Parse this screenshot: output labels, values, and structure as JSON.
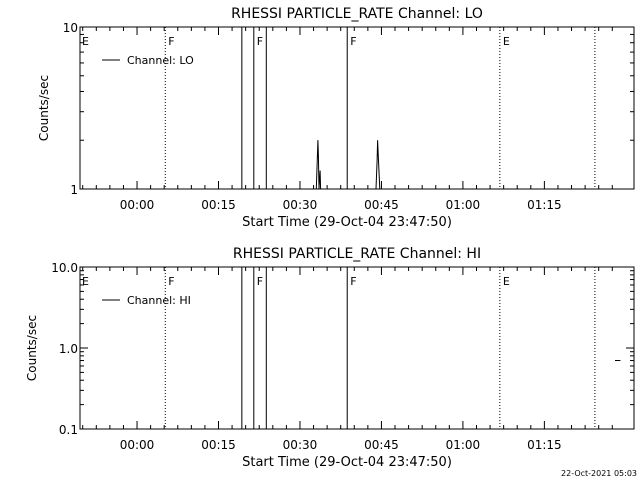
{
  "footer": {
    "timestamp": "22-Oct-2021 05:03"
  },
  "chart_data": [
    {
      "type": "line",
      "title": "RHESSI PARTICLE_RATE Channel: LO",
      "xlabel": "Start Time (29-Oct-04 23:47:50)",
      "ylabel": "Counts/sec",
      "yscale": "log",
      "ylim": [
        1,
        10
      ],
      "yticks": [
        {
          "value": 1,
          "label": "1"
        },
        {
          "value": 10,
          "label": "10"
        }
      ],
      "xlim_minutes": [
        -10.5,
        91.5
      ],
      "xticks": [
        {
          "t": 0,
          "label": "00:00"
        },
        {
          "t": 15,
          "label": "00:15"
        },
        {
          "t": 30,
          "label": "00:30"
        },
        {
          "t": 45,
          "label": "00:45"
        },
        {
          "t": 60,
          "label": "01:00"
        },
        {
          "t": 75,
          "label": "01:15"
        }
      ],
      "legend": {
        "label": "Channel: LO",
        "placement": "top-left"
      },
      "event_markers": [
        {
          "t": 5.2,
          "label": "F",
          "style": "dotted"
        },
        {
          "t": 19.3,
          "label": "",
          "style": "solid"
        },
        {
          "t": 21.5,
          "label": "F",
          "style": "solid"
        },
        {
          "t": 23.8,
          "label": "",
          "style": "solid"
        },
        {
          "t": 38.7,
          "label": "F",
          "style": "solid"
        },
        {
          "t": 66.8,
          "label": "E",
          "style": "dotted"
        },
        {
          "t": 84.3,
          "label": "",
          "style": "dotted"
        }
      ],
      "left_marker_label": "E",
      "series": [
        {
          "points": [
            [
              33.0,
              1.0
            ],
            [
              33.2,
              1.6
            ],
            [
              33.3,
              2.0
            ],
            [
              33.4,
              1.6
            ],
            [
              33.5,
              1.0
            ],
            [
              33.7,
              1.3
            ],
            [
              33.8,
              1.0
            ]
          ]
        },
        {
          "points": [
            [
              44.0,
              1.0
            ],
            [
              44.2,
              1.5
            ],
            [
              44.3,
              2.0
            ],
            [
              44.5,
              1.4
            ],
            [
              44.7,
              1.0
            ]
          ]
        }
      ]
    },
    {
      "type": "line",
      "title": "RHESSI PARTICLE_RATE Channel: HI",
      "xlabel": "Start Time (29-Oct-04 23:47:50)",
      "ylabel": "Counts/sec",
      "yscale": "log",
      "ylim": [
        0.1,
        10
      ],
      "yticks": [
        {
          "value": 0.1,
          "label": "0.1"
        },
        {
          "value": 1,
          "label": "1.0"
        },
        {
          "value": 10,
          "label": "10.0"
        }
      ],
      "xlim_minutes": [
        -10.5,
        91.5
      ],
      "xticks": [
        {
          "t": 0,
          "label": "00:00"
        },
        {
          "t": 15,
          "label": "00:15"
        },
        {
          "t": 30,
          "label": "00:30"
        },
        {
          "t": 45,
          "label": "00:45"
        },
        {
          "t": 60,
          "label": "01:00"
        },
        {
          "t": 75,
          "label": "01:15"
        }
      ],
      "legend": {
        "label": "Channel: HI",
        "placement": "top-left"
      },
      "event_markers": [
        {
          "t": 5.2,
          "label": "F",
          "style": "dotted"
        },
        {
          "t": 19.3,
          "label": "",
          "style": "solid"
        },
        {
          "t": 21.5,
          "label": "F",
          "style": "solid"
        },
        {
          "t": 23.8,
          "label": "",
          "style": "solid"
        },
        {
          "t": 38.7,
          "label": "F",
          "style": "solid"
        },
        {
          "t": 66.8,
          "label": "E",
          "style": "dotted"
        },
        {
          "t": 84.3,
          "label": "",
          "style": "dotted"
        }
      ],
      "left_marker_label": "E",
      "series": [
        {
          "points": [
            [
              88.0,
              0.7
            ],
            [
              89.0,
              0.7
            ]
          ]
        }
      ]
    }
  ]
}
